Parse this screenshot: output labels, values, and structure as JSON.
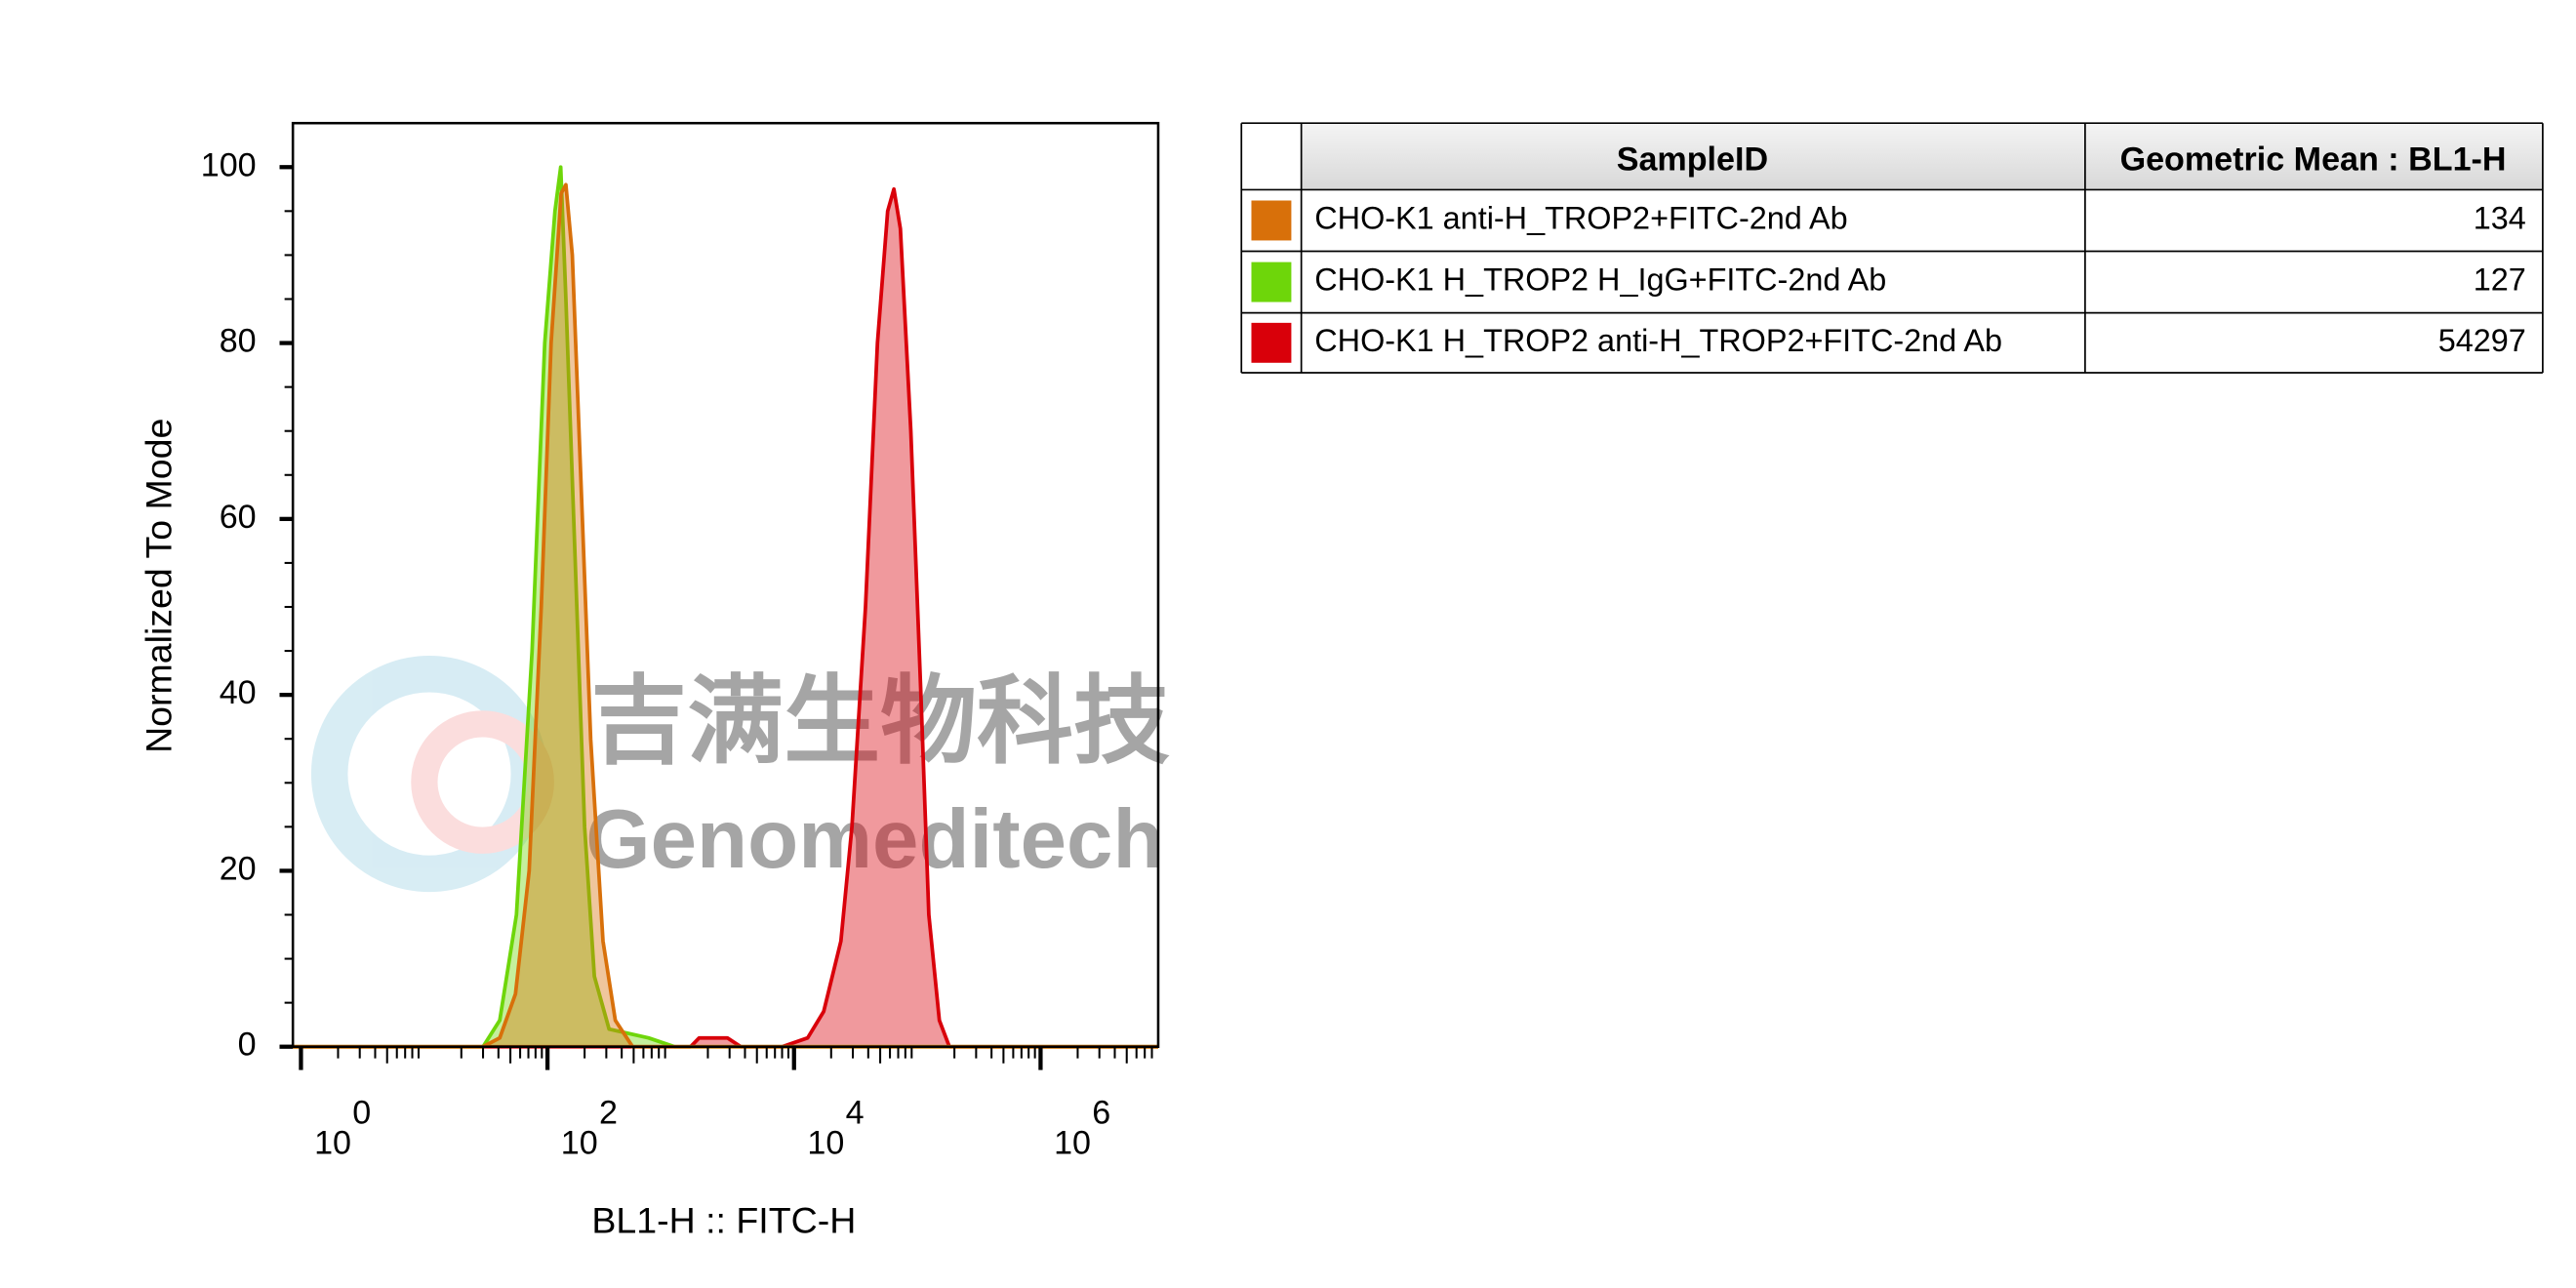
{
  "chart_data": {
    "type": "area",
    "xlabel": "BL1-H :: FITC-H",
    "ylabel": "Normalized To Mode",
    "xscale": "log",
    "xlim": [
      0.86,
      9000000
    ],
    "ylim": [
      0,
      105
    ],
    "xticks": [
      {
        "value": 1,
        "label": "10",
        "superscript": "0"
      },
      {
        "value": 100,
        "label": "10",
        "superscript": "2"
      },
      {
        "value": 10000,
        "label": "10",
        "superscript": "4"
      },
      {
        "value": 1000000,
        "label": "10",
        "superscript": "6"
      }
    ],
    "yticks": [
      0,
      20,
      40,
      60,
      80,
      100
    ],
    "watermark": [
      "吉满生物科技",
      "Genomeditech"
    ],
    "table_headers": [
      "SampleID",
      "Geometric Mean : BL1-H"
    ],
    "series": [
      {
        "name": "CHO-K1 anti-H_TROP2+FITC-2nd Ab",
        "color": "#d8700a",
        "geometric_mean": "134",
        "x": [
          0.86,
          30,
          41,
          55,
          71,
          89,
          107,
          129,
          141,
          159,
          186,
          224,
          282,
          355,
          490,
          9000000
        ],
        "values": [
          0,
          0,
          1,
          6,
          20,
          50,
          80,
          97,
          98,
          90,
          65,
          35,
          12,
          3,
          0,
          0
        ]
      },
      {
        "name": "CHO-K1 H_TROP2 H_IgG+FITC-2nd Ab",
        "color": "#6ed60a",
        "geometric_mean": "127",
        "x": [
          0.86,
          30,
          41,
          56,
          75,
          95,
          115,
          128,
          141,
          168,
          200,
          240,
          316,
          660,
          1070,
          9000000
        ],
        "values": [
          0,
          0,
          3,
          15,
          45,
          80,
          95,
          100,
          85,
          55,
          25,
          8,
          2,
          1,
          0,
          0
        ]
      },
      {
        "name": "CHO-K1 H_TROP2 anti-H_TROP2+FITC-2nd Ab",
        "color": "#d9000a",
        "geometric_mean": "54297",
        "x": [
          0.86,
          1450,
          1700,
          2880,
          3700,
          8000,
          12900,
          17400,
          24000,
          29500,
          38000,
          47500,
          57500,
          64600,
          72900,
          88600,
          107000,
          124000,
          151000,
          182000,
          9000000
        ],
        "values": [
          0,
          0,
          1,
          1,
          0,
          0,
          1,
          4,
          12,
          25,
          50,
          80,
          95,
          97.5,
          93,
          70,
          40,
          15,
          3,
          0,
          0
        ]
      }
    ]
  }
}
